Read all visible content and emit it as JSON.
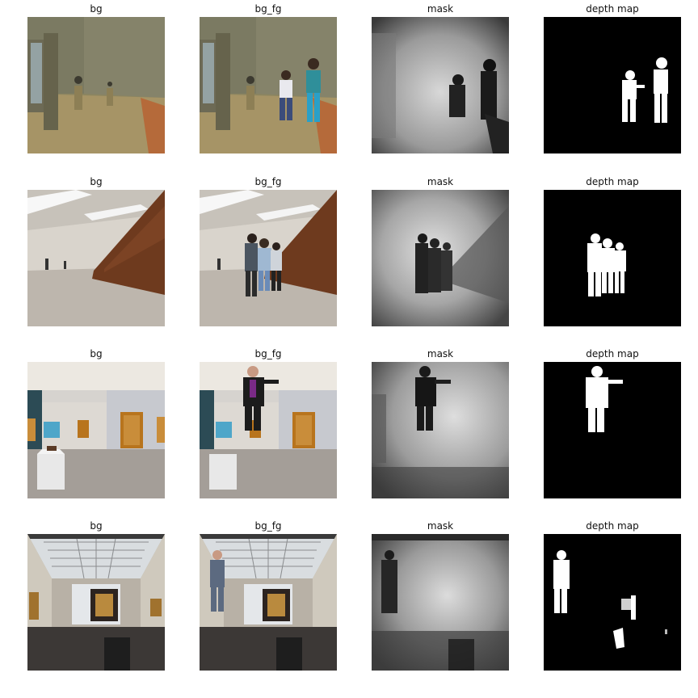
{
  "figure": {
    "rows": [
      {
        "titles": [
          "bg",
          "bg_fg",
          "mask",
          "depth map"
        ]
      },
      {
        "titles": [
          "bg",
          "bg_fg",
          "mask",
          "depth map"
        ]
      },
      {
        "titles": [
          "bg",
          "bg_fg",
          "mask",
          "depth map"
        ]
      },
      {
        "titles": [
          "bg",
          "bg_fg",
          "mask",
          "depth map"
        ]
      }
    ]
  }
}
